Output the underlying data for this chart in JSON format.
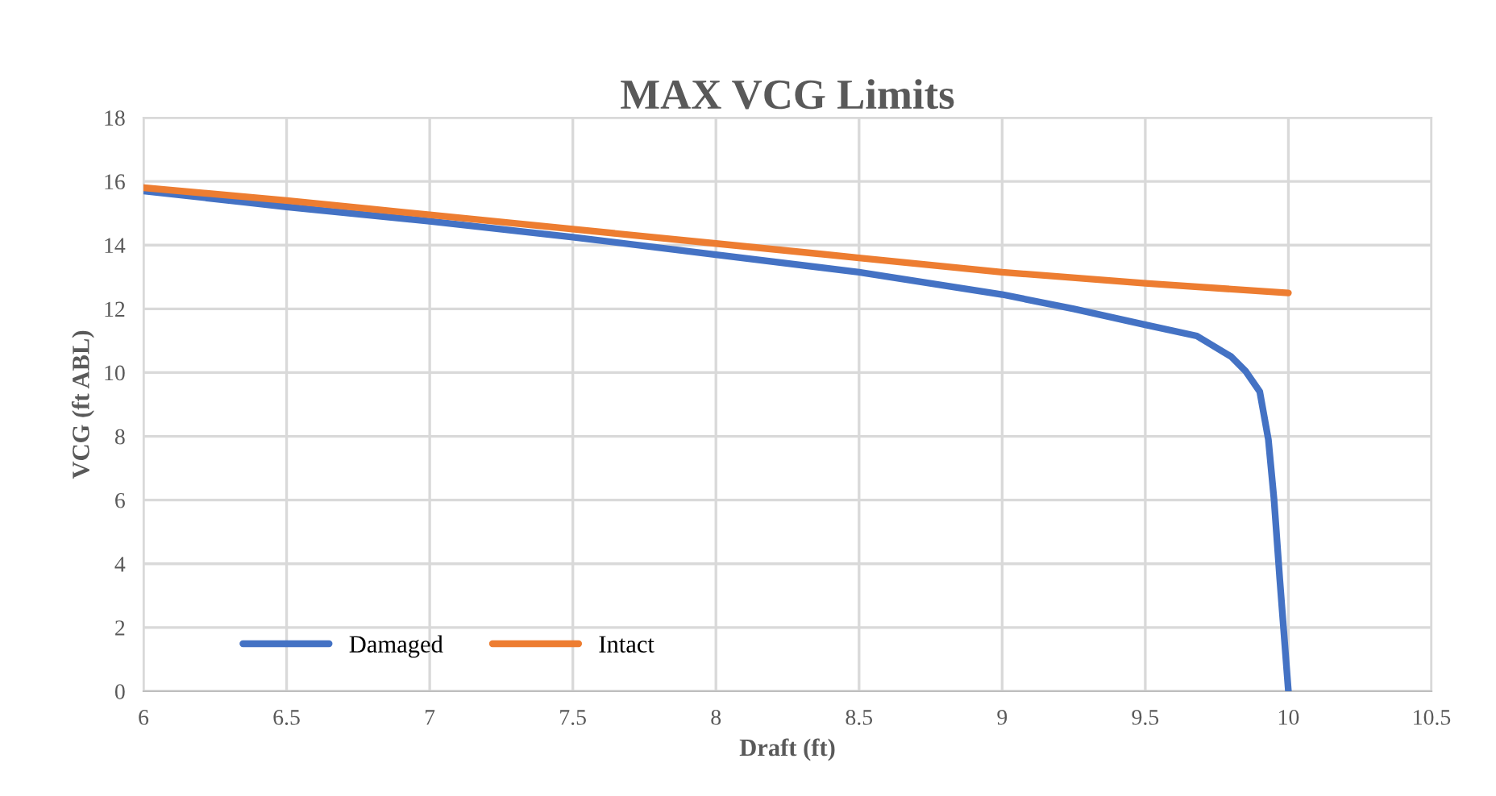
{
  "chart_data": {
    "type": "line",
    "title": "MAX VCG Limits",
    "xlabel": "Draft (ft)",
    "ylabel": "VCG (ft ABL)",
    "xlim": [
      6,
      10.5
    ],
    "xticks": [
      6,
      6.5,
      7,
      7.5,
      8,
      8.5,
      9,
      9.5,
      10,
      10.5
    ],
    "ylim": [
      0,
      18
    ],
    "yticks": [
      0,
      2,
      4,
      6,
      8,
      10,
      12,
      14,
      16,
      18
    ],
    "grid": true,
    "legend": "bottom left",
    "marker": "none",
    "line_style": "solid",
    "series": [
      {
        "name": "Damaged",
        "color": "#4472c4",
        "x": [
          6,
          6.5,
          7,
          7.5,
          8,
          8.5,
          9,
          9.25,
          9.5,
          9.68,
          9.8,
          9.85,
          9.9,
          9.93,
          9.95,
          9.97,
          10
        ],
        "values": [
          15.7,
          15.2,
          14.75,
          14.25,
          13.7,
          13.15,
          12.45,
          12.0,
          11.5,
          11.15,
          10.5,
          10.05,
          9.4,
          7.9,
          6.0,
          3.5,
          0
        ]
      },
      {
        "name": "Intact",
        "color": "#ed7d31",
        "x": [
          6,
          6.5,
          7,
          7.5,
          8,
          8.5,
          9,
          9.5,
          10
        ],
        "values": [
          15.8,
          15.4,
          14.95,
          14.5,
          14.05,
          13.6,
          13.15,
          12.8,
          12.5
        ]
      }
    ]
  }
}
